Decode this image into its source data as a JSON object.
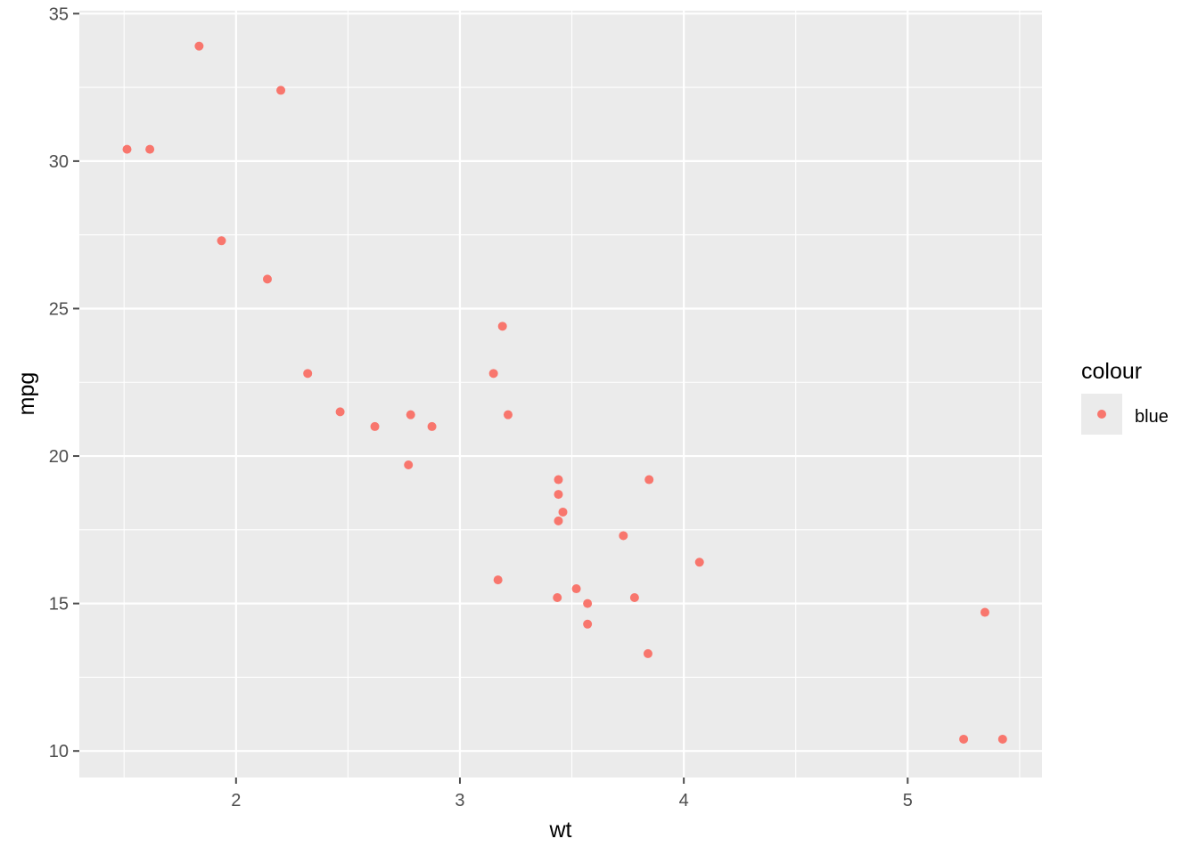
{
  "chart_data": {
    "type": "scatter",
    "xlabel": "wt",
    "ylabel": "mpg",
    "xlim": [
      1.3,
      5.6
    ],
    "ylim": [
      9.1,
      35.1
    ],
    "xticks": [
      2,
      3,
      4,
      5
    ],
    "yticks": [
      10,
      15,
      20,
      25,
      30,
      35
    ],
    "grid": true,
    "legend": {
      "title": "colour",
      "position": "right",
      "entries": [
        "blue"
      ]
    },
    "colors": {
      "point": "#F8766D",
      "panel": "#EBEBEB",
      "grid_major": "#FFFFFF",
      "tick": "#4D4D4D"
    },
    "series": [
      {
        "name": "blue",
        "points": [
          [
            1.513,
            30.4
          ],
          [
            1.615,
            30.4
          ],
          [
            1.835,
            33.9
          ],
          [
            1.935,
            27.3
          ],
          [
            2.14,
            26.0
          ],
          [
            2.2,
            32.4
          ],
          [
            2.32,
            22.8
          ],
          [
            2.465,
            21.5
          ],
          [
            2.62,
            21.0
          ],
          [
            2.77,
            19.7
          ],
          [
            2.78,
            21.4
          ],
          [
            2.875,
            21.0
          ],
          [
            3.15,
            22.8
          ],
          [
            3.17,
            15.8
          ],
          [
            3.19,
            24.4
          ],
          [
            3.215,
            21.4
          ],
          [
            3.435,
            15.2
          ],
          [
            3.44,
            18.7
          ],
          [
            3.44,
            19.2
          ],
          [
            3.44,
            17.8
          ],
          [
            3.46,
            18.1
          ],
          [
            3.52,
            15.5
          ],
          [
            3.57,
            15.0
          ],
          [
            3.57,
            14.3
          ],
          [
            3.73,
            17.3
          ],
          [
            3.78,
            15.2
          ],
          [
            3.84,
            13.3
          ],
          [
            3.845,
            19.2
          ],
          [
            4.07,
            16.4
          ],
          [
            5.25,
            10.4
          ],
          [
            5.345,
            14.7
          ],
          [
            5.424,
            10.4
          ]
        ]
      }
    ]
  }
}
